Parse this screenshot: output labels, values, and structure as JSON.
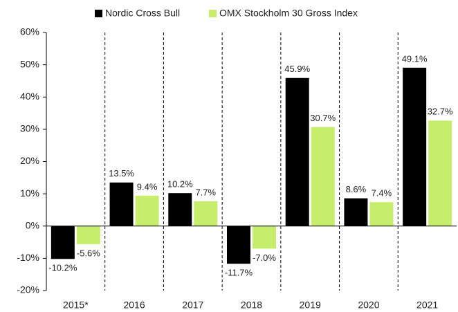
{
  "chart_data": {
    "type": "bar",
    "categories": [
      "2015*",
      "2016",
      "2017",
      "2018",
      "2019",
      "2020",
      "2021"
    ],
    "series": [
      {
        "name": "Nordic Cross Bull",
        "color": "#000000",
        "values": [
          -10.2,
          13.5,
          10.2,
          -11.7,
          45.9,
          8.6,
          49.1
        ],
        "value_labels": [
          "-10.2%",
          "13.5%",
          "10.2%",
          "-11.7%",
          "45.9%",
          "8.6%",
          "49.1%"
        ]
      },
      {
        "name": "OMX Stockholm 30 Gross Index",
        "color": "#c6ed6b",
        "values": [
          -5.6,
          9.4,
          7.7,
          -7.0,
          30.7,
          7.4,
          32.7
        ],
        "value_labels": [
          "-5.6%",
          "9.4%",
          "7.7%",
          "-7.0%",
          "30.7%",
          "7.4%",
          "32.7%"
        ]
      }
    ],
    "ylim": [
      -20,
      60
    ],
    "yticks": [
      {
        "value": -20,
        "label": "-20%"
      },
      {
        "value": -10,
        "label": "-10%"
      },
      {
        "value": 0,
        "label": "0%"
      },
      {
        "value": 10,
        "label": "10%"
      },
      {
        "value": 20,
        "label": "20%"
      },
      {
        "value": 30,
        "label": "30%"
      },
      {
        "value": 40,
        "label": "40%"
      },
      {
        "value": 50,
        "label": "50%"
      },
      {
        "value": 60,
        "label": "60%"
      }
    ],
    "legend": "top"
  }
}
